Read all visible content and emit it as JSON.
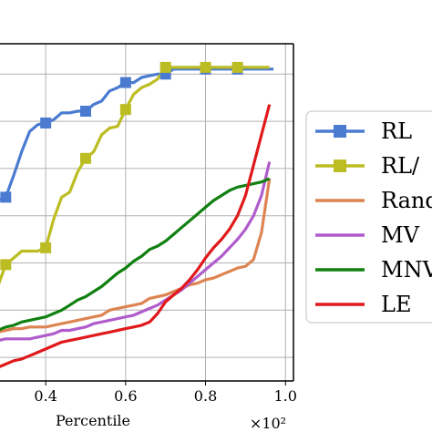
{
  "chart_data": {
    "type": "line",
    "title": "",
    "xlabel": "Percentile",
    "x_multiplier": "×10²",
    "ylabel": "",
    "xlim": [
      0.24,
      1.02
    ],
    "ylim": [
      0.0,
      1.0
    ],
    "x_ticks": [
      "0.4",
      "0.6",
      "0.8",
      "1.0"
    ],
    "x_tick_values": [
      0.4,
      0.6,
      0.8,
      1.0
    ],
    "grid": true,
    "legend_position": "right",
    "series": [
      {
        "name": "RL",
        "color": "#4a7bd1",
        "marker": "square",
        "points": [
          [
            0.24,
            0.515
          ],
          [
            0.26,
            0.52
          ],
          [
            0.28,
            0.535
          ],
          [
            0.3,
            0.545
          ],
          [
            0.32,
            0.61
          ],
          [
            0.34,
            0.68
          ],
          [
            0.36,
            0.74
          ],
          [
            0.38,
            0.76
          ],
          [
            0.4,
            0.765
          ],
          [
            0.42,
            0.775
          ],
          [
            0.44,
            0.795
          ],
          [
            0.46,
            0.795
          ],
          [
            0.48,
            0.8
          ],
          [
            0.5,
            0.8
          ],
          [
            0.52,
            0.82
          ],
          [
            0.54,
            0.83
          ],
          [
            0.56,
            0.86
          ],
          [
            0.58,
            0.87
          ],
          [
            0.6,
            0.885
          ],
          [
            0.62,
            0.885
          ],
          [
            0.64,
            0.9
          ],
          [
            0.66,
            0.905
          ],
          [
            0.68,
            0.91
          ],
          [
            0.7,
            0.91
          ],
          [
            0.72,
            0.925
          ],
          [
            0.74,
            0.925
          ],
          [
            0.76,
            0.925
          ],
          [
            0.78,
            0.925
          ],
          [
            0.8,
            0.925
          ],
          [
            0.84,
            0.925
          ],
          [
            0.88,
            0.925
          ],
          [
            0.92,
            0.925
          ],
          [
            0.97,
            0.925
          ]
        ],
        "marker_x": [
          0.3,
          0.4,
          0.5,
          0.6,
          0.7,
          0.8,
          0.9
        ]
      },
      {
        "name": "RL/",
        "color": "#bcbd22",
        "marker": "square",
        "points": [
          [
            0.26,
            0.17
          ],
          [
            0.28,
            0.28
          ],
          [
            0.3,
            0.345
          ],
          [
            0.32,
            0.365
          ],
          [
            0.34,
            0.385
          ],
          [
            0.36,
            0.385
          ],
          [
            0.38,
            0.385
          ],
          [
            0.4,
            0.395
          ],
          [
            0.42,
            0.48
          ],
          [
            0.44,
            0.545
          ],
          [
            0.46,
            0.56
          ],
          [
            0.48,
            0.62
          ],
          [
            0.5,
            0.66
          ],
          [
            0.52,
            0.68
          ],
          [
            0.54,
            0.73
          ],
          [
            0.56,
            0.75
          ],
          [
            0.58,
            0.755
          ],
          [
            0.6,
            0.805
          ],
          [
            0.62,
            0.85
          ],
          [
            0.64,
            0.87
          ],
          [
            0.66,
            0.88
          ],
          [
            0.68,
            0.895
          ],
          [
            0.7,
            0.93
          ],
          [
            0.72,
            0.93
          ],
          [
            0.76,
            0.93
          ],
          [
            0.8,
            0.93
          ],
          [
            0.84,
            0.93
          ],
          [
            0.88,
            0.93
          ],
          [
            0.92,
            0.93
          ],
          [
            0.96,
            0.93
          ]
        ],
        "marker_x": [
          0.3,
          0.4,
          0.5,
          0.6,
          0.7,
          0.8,
          0.9
        ]
      },
      {
        "name": "Rand",
        "color": "#dd8452",
        "marker": "none",
        "points": [
          [
            0.24,
            0.125
          ],
          [
            0.26,
            0.14
          ],
          [
            0.28,
            0.145
          ],
          [
            0.3,
            0.15
          ],
          [
            0.32,
            0.155
          ],
          [
            0.34,
            0.155
          ],
          [
            0.36,
            0.16
          ],
          [
            0.38,
            0.16
          ],
          [
            0.4,
            0.16
          ],
          [
            0.42,
            0.165
          ],
          [
            0.44,
            0.17
          ],
          [
            0.46,
            0.175
          ],
          [
            0.48,
            0.18
          ],
          [
            0.5,
            0.185
          ],
          [
            0.52,
            0.19
          ],
          [
            0.54,
            0.195
          ],
          [
            0.56,
            0.21
          ],
          [
            0.58,
            0.215
          ],
          [
            0.6,
            0.22
          ],
          [
            0.62,
            0.225
          ],
          [
            0.64,
            0.23
          ],
          [
            0.66,
            0.245
          ],
          [
            0.68,
            0.25
          ],
          [
            0.7,
            0.255
          ],
          [
            0.72,
            0.265
          ],
          [
            0.74,
            0.275
          ],
          [
            0.76,
            0.285
          ],
          [
            0.78,
            0.29
          ],
          [
            0.8,
            0.3
          ],
          [
            0.82,
            0.305
          ],
          [
            0.84,
            0.315
          ],
          [
            0.86,
            0.325
          ],
          [
            0.88,
            0.335
          ],
          [
            0.9,
            0.34
          ],
          [
            0.92,
            0.36
          ],
          [
            0.94,
            0.44
          ],
          [
            0.96,
            0.6
          ]
        ]
      },
      {
        "name": "MV",
        "color": "#b05ccc",
        "marker": "none",
        "points": [
          [
            0.24,
            0.11
          ],
          [
            0.26,
            0.115
          ],
          [
            0.28,
            0.12
          ],
          [
            0.3,
            0.125
          ],
          [
            0.32,
            0.125
          ],
          [
            0.34,
            0.125
          ],
          [
            0.36,
            0.125
          ],
          [
            0.38,
            0.13
          ],
          [
            0.4,
            0.135
          ],
          [
            0.42,
            0.14
          ],
          [
            0.44,
            0.15
          ],
          [
            0.46,
            0.15
          ],
          [
            0.48,
            0.155
          ],
          [
            0.5,
            0.16
          ],
          [
            0.52,
            0.17
          ],
          [
            0.54,
            0.175
          ],
          [
            0.56,
            0.18
          ],
          [
            0.58,
            0.185
          ],
          [
            0.6,
            0.19
          ],
          [
            0.62,
            0.195
          ],
          [
            0.64,
            0.205
          ],
          [
            0.66,
            0.215
          ],
          [
            0.68,
            0.225
          ],
          [
            0.7,
            0.24
          ],
          [
            0.72,
            0.255
          ],
          [
            0.74,
            0.27
          ],
          [
            0.76,
            0.29
          ],
          [
            0.78,
            0.31
          ],
          [
            0.8,
            0.33
          ],
          [
            0.82,
            0.35
          ],
          [
            0.84,
            0.37
          ],
          [
            0.86,
            0.395
          ],
          [
            0.88,
            0.42
          ],
          [
            0.9,
            0.45
          ],
          [
            0.92,
            0.49
          ],
          [
            0.94,
            0.55
          ],
          [
            0.96,
            0.65
          ]
        ]
      },
      {
        "name": "MNV",
        "color": "#108010",
        "marker": "none",
        "points": [
          [
            0.24,
            0.13
          ],
          [
            0.26,
            0.14
          ],
          [
            0.28,
            0.15
          ],
          [
            0.3,
            0.16
          ],
          [
            0.32,
            0.165
          ],
          [
            0.34,
            0.175
          ],
          [
            0.36,
            0.18
          ],
          [
            0.38,
            0.185
          ],
          [
            0.4,
            0.19
          ],
          [
            0.42,
            0.2
          ],
          [
            0.44,
            0.21
          ],
          [
            0.46,
            0.225
          ],
          [
            0.48,
            0.24
          ],
          [
            0.5,
            0.25
          ],
          [
            0.52,
            0.265
          ],
          [
            0.54,
            0.28
          ],
          [
            0.56,
            0.3
          ],
          [
            0.58,
            0.32
          ],
          [
            0.6,
            0.335
          ],
          [
            0.62,
            0.355
          ],
          [
            0.64,
            0.37
          ],
          [
            0.66,
            0.39
          ],
          [
            0.68,
            0.4
          ],
          [
            0.7,
            0.415
          ],
          [
            0.72,
            0.435
          ],
          [
            0.74,
            0.455
          ],
          [
            0.76,
            0.475
          ],
          [
            0.78,
            0.495
          ],
          [
            0.8,
            0.515
          ],
          [
            0.82,
            0.535
          ],
          [
            0.84,
            0.55
          ],
          [
            0.86,
            0.565
          ],
          [
            0.88,
            0.575
          ],
          [
            0.9,
            0.58
          ],
          [
            0.92,
            0.585
          ],
          [
            0.94,
            0.59
          ],
          [
            0.96,
            0.6
          ]
        ]
      },
      {
        "name": "LE",
        "color": "#e0191b",
        "marker": "none",
        "points": [
          [
            0.24,
            0.02
          ],
          [
            0.26,
            0.03
          ],
          [
            0.28,
            0.04
          ],
          [
            0.3,
            0.05
          ],
          [
            0.32,
            0.06
          ],
          [
            0.34,
            0.065
          ],
          [
            0.36,
            0.075
          ],
          [
            0.38,
            0.085
          ],
          [
            0.4,
            0.095
          ],
          [
            0.42,
            0.105
          ],
          [
            0.44,
            0.115
          ],
          [
            0.46,
            0.12
          ],
          [
            0.48,
            0.125
          ],
          [
            0.5,
            0.13
          ],
          [
            0.52,
            0.135
          ],
          [
            0.54,
            0.14
          ],
          [
            0.56,
            0.145
          ],
          [
            0.58,
            0.15
          ],
          [
            0.6,
            0.155
          ],
          [
            0.62,
            0.16
          ],
          [
            0.64,
            0.165
          ],
          [
            0.66,
            0.175
          ],
          [
            0.68,
            0.2
          ],
          [
            0.7,
            0.235
          ],
          [
            0.72,
            0.255
          ],
          [
            0.74,
            0.275
          ],
          [
            0.76,
            0.3
          ],
          [
            0.78,
            0.33
          ],
          [
            0.8,
            0.365
          ],
          [
            0.82,
            0.395
          ],
          [
            0.84,
            0.42
          ],
          [
            0.86,
            0.45
          ],
          [
            0.88,
            0.49
          ],
          [
            0.9,
            0.55
          ],
          [
            0.92,
            0.64
          ],
          [
            0.94,
            0.73
          ],
          [
            0.96,
            0.82
          ]
        ]
      }
    ]
  }
}
